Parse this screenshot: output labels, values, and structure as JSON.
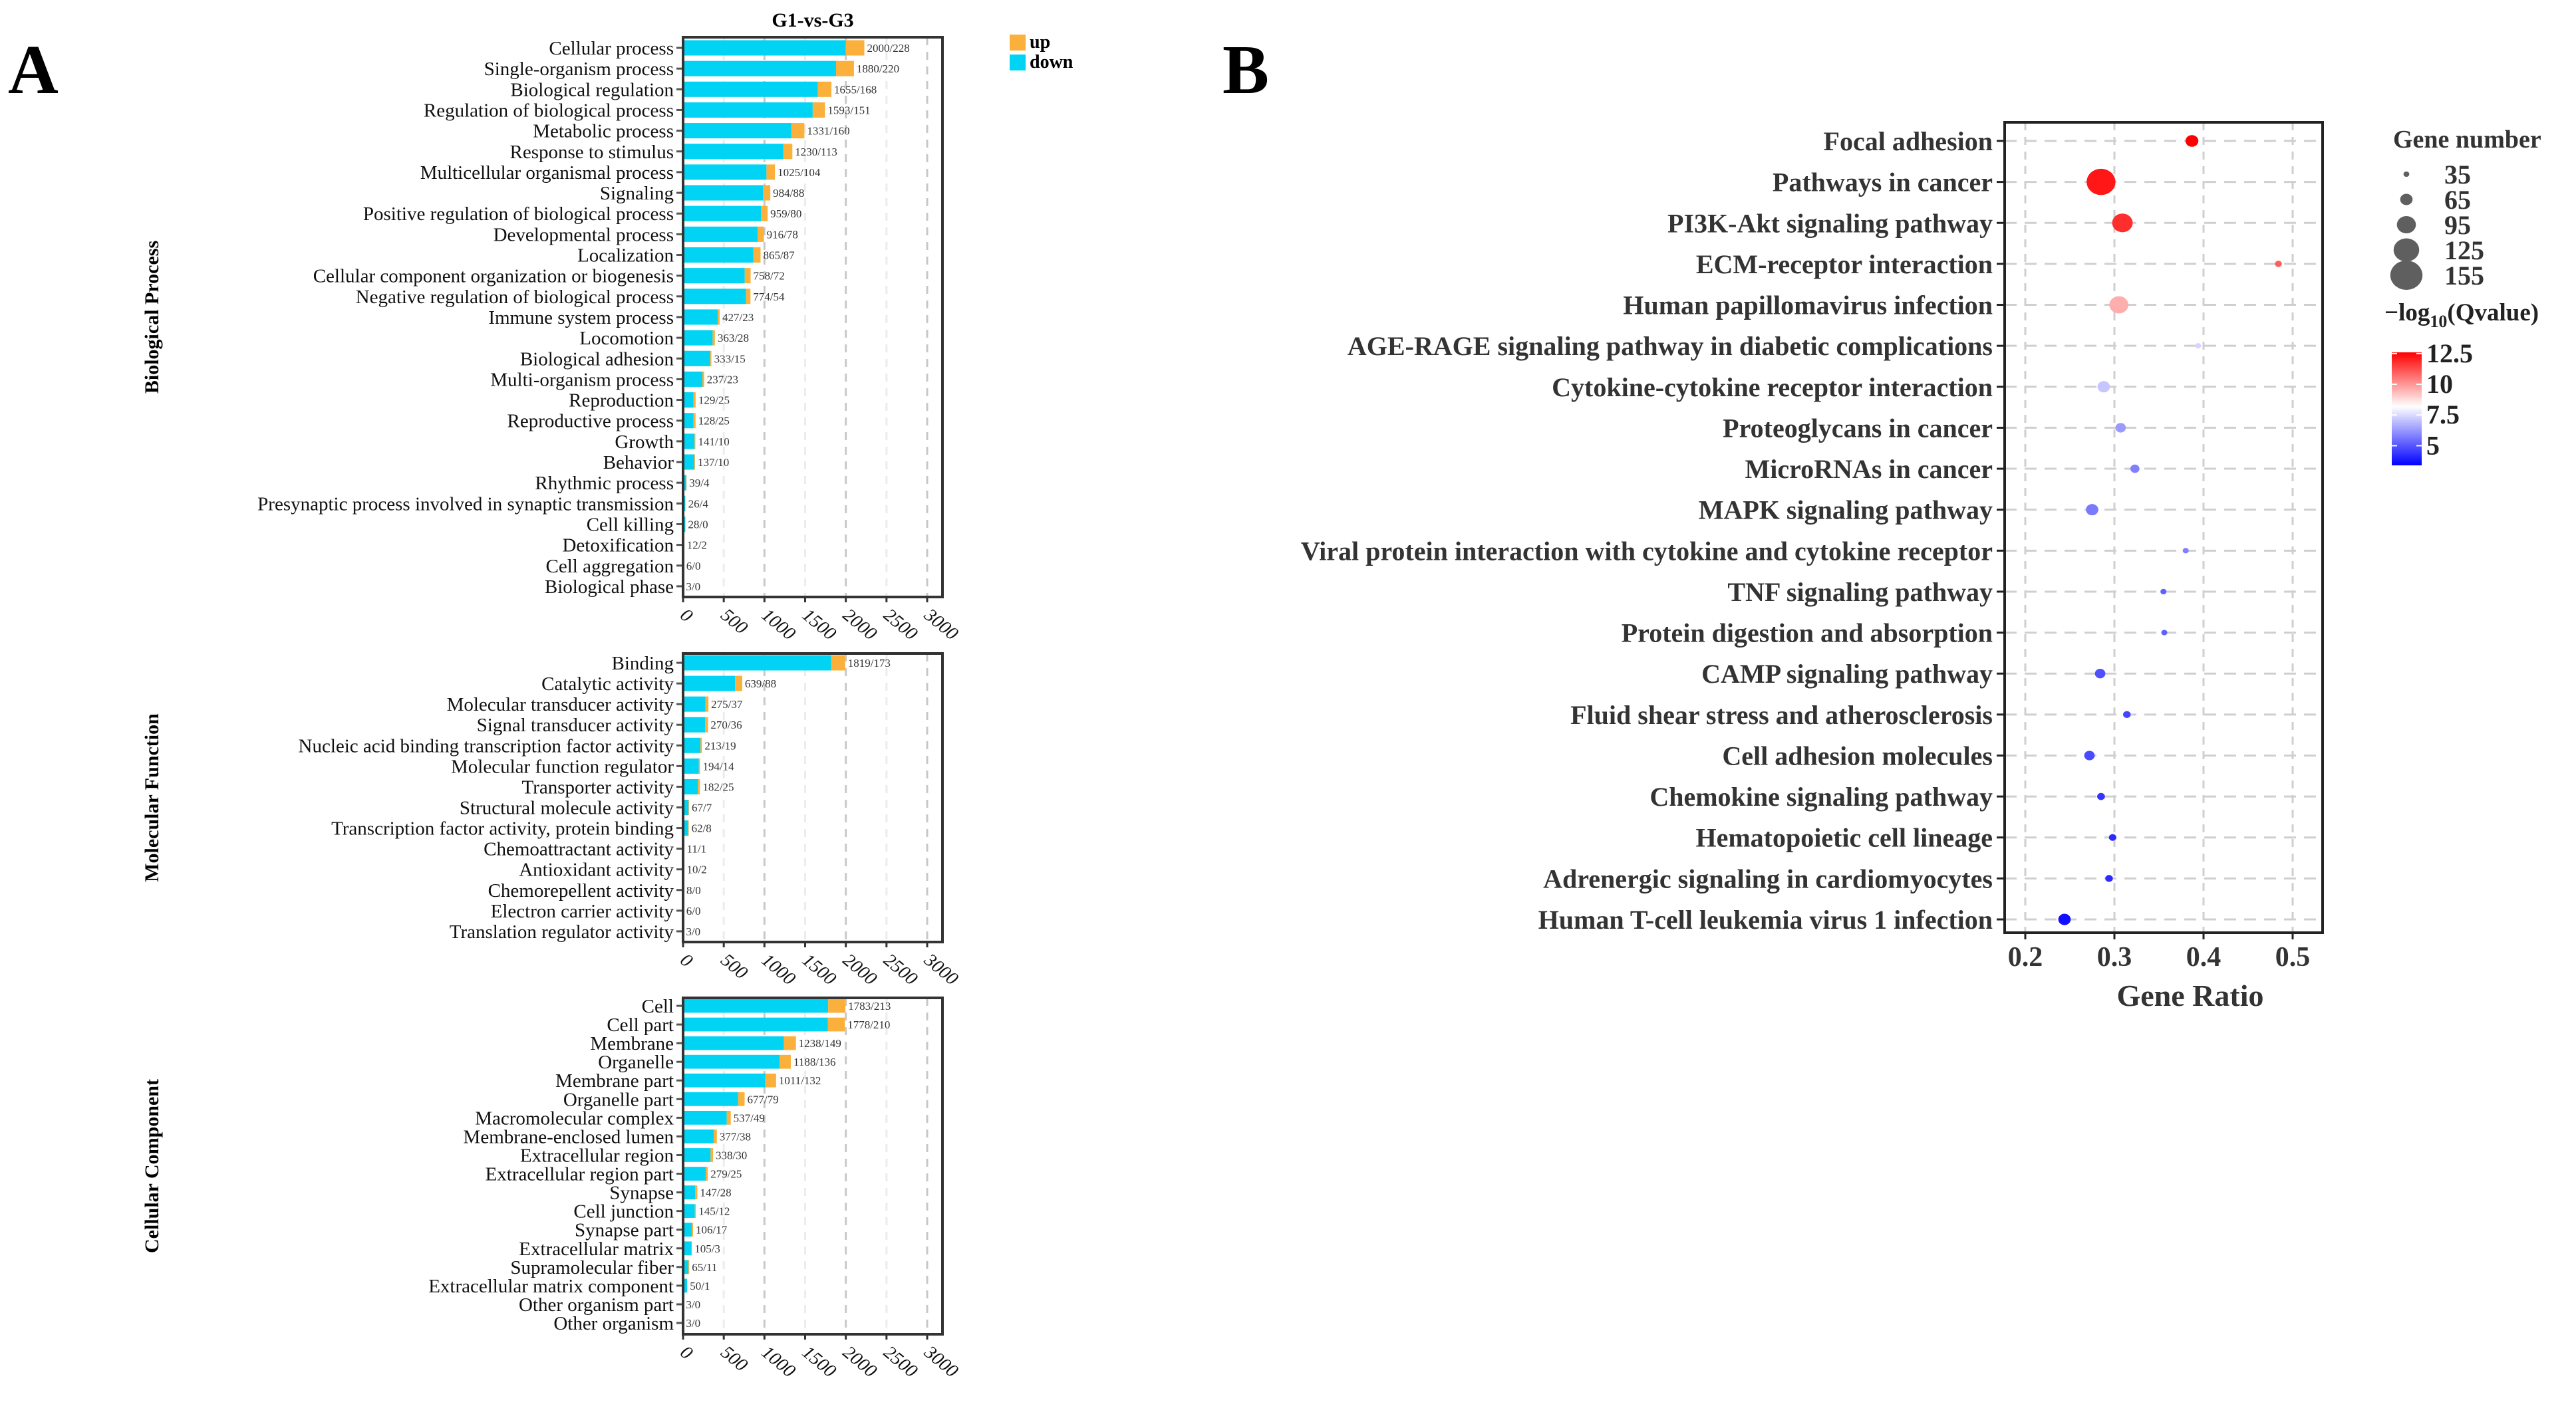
{
  "panel_a_label": "A",
  "panel_b_label": "B",
  "chart_data": [
    {
      "type": "bar",
      "stacked": true,
      "orientation": "horizontal",
      "title": "G1-vs-G3",
      "legend": [
        {
          "name": "up",
          "color": "#FBB03B"
        },
        {
          "name": "down",
          "color": "#00D3F3"
        }
      ],
      "legend_position": "top-right",
      "xlim": [
        0,
        3000
      ],
      "xticks": [
        "0",
        "500",
        "1000",
        "1500",
        "2000",
        "2500",
        "3000"
      ],
      "grid": true,
      "groups": [
        {
          "name": "Biological Process",
          "categories": [
            "Cellular process",
            "Single-organism process",
            "Biological regulation",
            "Regulation of biological process",
            "Metabolic process",
            "Response to stimulus",
            "Multicellular organismal process",
            "Signaling",
            "Positive regulation of biological process",
            "Developmental process",
            "Localization",
            "Cellular component organization or biogenesis",
            "Negative regulation of biological process",
            "Immune system process",
            "Locomotion",
            "Biological adhesion",
            "Multi-organism process",
            "Reproduction",
            "Reproductive process",
            "Growth",
            "Behavior",
            "Rhythmic process",
            "Presynaptic process involved in synaptic transmission",
            "Cell killing",
            "Detoxification",
            "Cell aggregation",
            "Biological phase"
          ],
          "down": [
            2000,
            1880,
            1655,
            1593,
            1331,
            1230,
            1025,
            984,
            959,
            916,
            865,
            758,
            774,
            427,
            363,
            333,
            237,
            129,
            128,
            141,
            137,
            39,
            26,
            28,
            12,
            6,
            3
          ],
          "up": [
            228,
            220,
            168,
            151,
            160,
            113,
            104,
            88,
            80,
            78,
            87,
            72,
            54,
            23,
            28,
            15,
            23,
            25,
            25,
            10,
            10,
            4,
            4,
            0,
            2,
            0,
            0
          ],
          "labels": [
            "2000/228",
            "1880/220",
            "1655/168",
            "1593/151",
            "1331/160",
            "1230/113",
            "1025/104",
            "984/88",
            "959/80",
            "916/78",
            "865/87",
            "758/72",
            "774/54",
            "427/23",
            "363/28",
            "333/15",
            "237/23",
            "129/25",
            "128/25",
            "141/10",
            "137/10",
            "39/4",
            "26/4",
            "28/0",
            "12/2",
            "6/0",
            "3/0"
          ]
        },
        {
          "name": "Molecular Function",
          "categories": [
            "Binding",
            "Catalytic activity",
            "Molecular transducer activity",
            "Signal transducer activity",
            "Nucleic acid binding transcription factor activity",
            "Molecular function regulator",
            "Transporter activity",
            "Structural molecule activity",
            "Transcription factor activity, protein binding",
            "Chemoattractant activity",
            "Antioxidant activity",
            "Chemorepellent activity",
            "Electron carrier activity",
            "Translation regulator activity"
          ],
          "down": [
            1819,
            639,
            275,
            270,
            213,
            194,
            182,
            67,
            62,
            11,
            10,
            8,
            6,
            3
          ],
          "up": [
            173,
            88,
            37,
            36,
            19,
            14,
            25,
            7,
            8,
            1,
            2,
            0,
            0,
            0
          ],
          "labels": [
            "1819/173",
            "639/88",
            "275/37",
            "270/36",
            "213/19",
            "194/14",
            "182/25",
            "67/7",
            "62/8",
            "11/1",
            "10/2",
            "8/0",
            "6/0",
            "3/0"
          ]
        },
        {
          "name": "Cellular Component",
          "categories": [
            "Cell",
            "Cell part",
            "Membrane",
            "Organelle",
            "Membrane part",
            "Organelle part",
            "Macromolecular complex",
            "Membrane-enclosed lumen",
            "Extracellular region",
            "Extracellular region part",
            "Synapse",
            "Cell junction",
            "Synapse part",
            "Extracellular matrix",
            "Supramolecular fiber",
            "Extracellular matrix component",
            "Other organism part",
            "Other organism"
          ],
          "down": [
            1783,
            1778,
            1238,
            1188,
            1011,
            677,
            537,
            377,
            338,
            279,
            147,
            145,
            106,
            105,
            65,
            50,
            3,
            3
          ],
          "up": [
            213,
            210,
            149,
            136,
            132,
            79,
            49,
            38,
            30,
            25,
            28,
            12,
            17,
            3,
            11,
            1,
            0,
            0
          ],
          "labels": [
            "1783/213",
            "1778/210",
            "1238/149",
            "1188/136",
            "1011/132",
            "677/79",
            "537/49",
            "377/38",
            "338/30",
            "279/25",
            "147/28",
            "145/12",
            "106/17",
            "105/3",
            "65/11",
            "50/1",
            "3/0",
            "3/0"
          ]
        }
      ]
    },
    {
      "type": "scatter",
      "xlabel": "Gene Ratio",
      "xlim": [
        0.185,
        0.535
      ],
      "xticks": [
        "0.2",
        "0.3",
        "0.4",
        "0.5"
      ],
      "xtick_values": [
        0.2,
        0.3,
        0.4,
        0.5
      ],
      "grid": true,
      "size_legend": {
        "title": "Gene number",
        "values": [
          "35",
          "65",
          "95",
          "125",
          "155"
        ]
      },
      "color_legend": {
        "title_prefix": "−log",
        "title_sub": "10",
        "title_suffix": "(Qvalue)",
        "ticks": [
          "12.5",
          "10",
          "7.5",
          "5"
        ],
        "tick_values": [
          12.5,
          10,
          7.5,
          5
        ],
        "range": [
          3.4,
          12.6
        ],
        "low_color": "#0000FF",
        "mid_color": "#FFFFFF",
        "high_color": "#FF0000",
        "mid_value": 8.2
      },
      "legend_position": "right",
      "points": [
        {
          "term": "Focal adhesion",
          "ratio": 0.387,
          "count": 67,
          "qlog": 12.6
        },
        {
          "term": "Pathways in cancer",
          "ratio": 0.285,
          "count": 140,
          "qlog": 12.2
        },
        {
          "term": "PI3K-Akt signaling pathway",
          "ratio": 0.309,
          "count": 102,
          "qlog": 11.8
        },
        {
          "term": "ECM-receptor interaction",
          "ratio": 0.484,
          "count": 40,
          "qlog": 11.0
        },
        {
          "term": "Human papillomavirus infection",
          "ratio": 0.305,
          "count": 95,
          "qlog": 9.6
        },
        {
          "term": "AGE-RAGE signaling pathway in diabetic complications",
          "ratio": 0.394,
          "count": 35,
          "qlog": 7.4
        },
        {
          "term": "Cytokine-cytokine receptor interaction",
          "ratio": 0.288,
          "count": 65,
          "qlog": 7.1
        },
        {
          "term": "Proteoglycans in cancer",
          "ratio": 0.307,
          "count": 56,
          "qlog": 6.3
        },
        {
          "term": "MicroRNAs in cancer",
          "ratio": 0.323,
          "count": 50,
          "qlog": 5.8
        },
        {
          "term": "MAPK signaling pathway",
          "ratio": 0.275,
          "count": 65,
          "qlog": 5.7
        },
        {
          "term": "Viral protein interaction with cytokine and cytokine receptor",
          "ratio": 0.38,
          "count": 36,
          "qlog": 5.8
        },
        {
          "term": "TNF signaling pathway",
          "ratio": 0.355,
          "count": 36,
          "qlog": 5.2
        },
        {
          "term": "Protein digestion and absorption",
          "ratio": 0.356,
          "count": 36,
          "qlog": 5.2
        },
        {
          "term": "CAMP signaling pathway",
          "ratio": 0.284,
          "count": 56,
          "qlog": 4.9
        },
        {
          "term": "Fluid shear stress and atherosclerosis",
          "ratio": 0.314,
          "count": 43,
          "qlog": 4.7
        },
        {
          "term": "Cell adhesion molecules",
          "ratio": 0.272,
          "count": 56,
          "qlog": 4.8
        },
        {
          "term": "Chemokine signaling pathway",
          "ratio": 0.285,
          "count": 44,
          "qlog": 4.4
        },
        {
          "term": "Hematopoietic cell lineage",
          "ratio": 0.298,
          "count": 42,
          "qlog": 4.2
        },
        {
          "term": "Adrenergic signaling in cardiomyocytes",
          "ratio": 0.294,
          "count": 43,
          "qlog": 4.2
        },
        {
          "term": "Human T-cell leukemia virus 1 infection",
          "ratio": 0.244,
          "count": 65,
          "qlog": 3.7
        }
      ]
    }
  ]
}
